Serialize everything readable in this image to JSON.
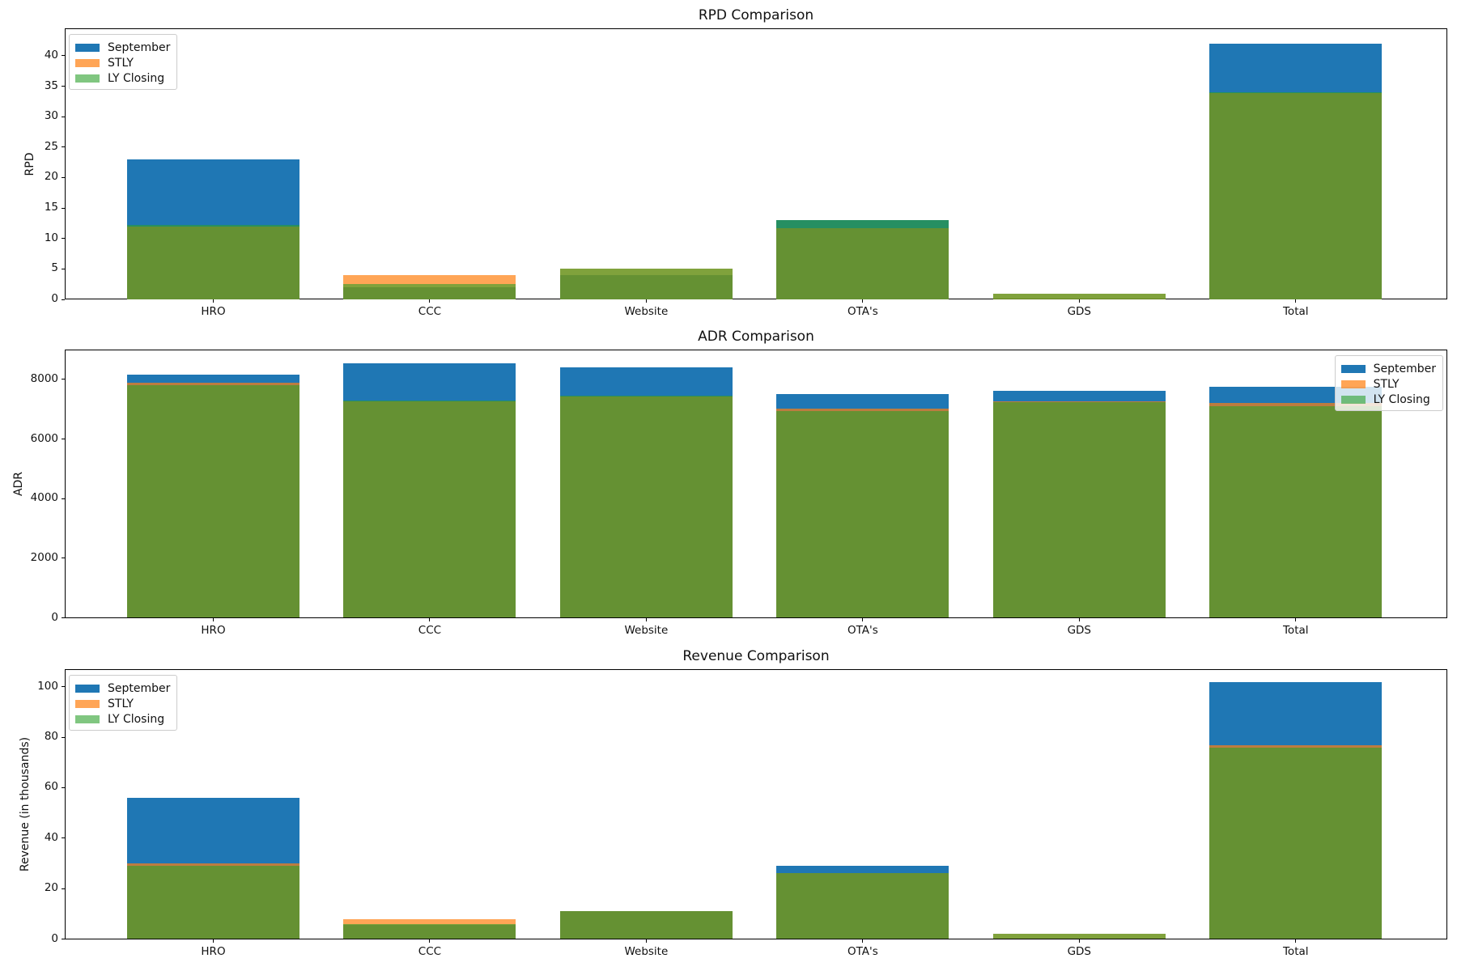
{
  "figure": {
    "background": "#ffffff"
  },
  "series_colors": {
    "September": "#1f77b4",
    "STLY": "#ff7f0e",
    "LY Closing": "#2ca02c"
  },
  "series_opacity": {
    "September": 1.0,
    "STLY": 0.7,
    "LY Closing": 0.6
  },
  "chart_data": [
    {
      "type": "bar",
      "title": "RPD Comparison",
      "ylabel": "RPD",
      "categories": [
        "HRO",
        "CCC",
        "Website",
        "OTA's",
        "GDS",
        "Total"
      ],
      "series": [
        {
          "name": "September",
          "values": [
            23,
            2,
            4,
            13,
            0,
            42
          ]
        },
        {
          "name": "STLY",
          "values": [
            12,
            4,
            5,
            11.7,
            0.9,
            33.9
          ]
        },
        {
          "name": "LY Closing",
          "values": [
            12.2,
            2.5,
            5,
            13,
            0.9,
            34
          ]
        }
      ],
      "ylim": [
        0,
        44.5
      ],
      "yticks": [
        0,
        5,
        10,
        15,
        20,
        25,
        30,
        35,
        40
      ],
      "legend_loc": "upper left",
      "grid": false
    },
    {
      "type": "bar",
      "title": "ADR Comparison",
      "ylabel": "ADR",
      "categories": [
        "HRO",
        "CCC",
        "Website",
        "OTA's",
        "GDS",
        "Total"
      ],
      "series": [
        {
          "name": "September",
          "values": [
            8150,
            8550,
            8390,
            7510,
            7620,
            7740
          ]
        },
        {
          "name": "STLY",
          "values": [
            7890,
            7250,
            7420,
            7020,
            7260,
            7200
          ]
        },
        {
          "name": "LY Closing",
          "values": [
            7810,
            7290,
            7440,
            6940,
            7240,
            7110
          ]
        }
      ],
      "ylim": [
        0,
        9000
      ],
      "yticks": [
        0,
        2000,
        4000,
        6000,
        8000
      ],
      "legend_loc": "upper right",
      "grid": false
    },
    {
      "type": "bar",
      "title": "Revenue Comparison",
      "ylabel": "Revenue (in thousands)",
      "categories": [
        "HRO",
        "CCC",
        "Website",
        "OTA's",
        "GDS",
        "Total"
      ],
      "series": [
        {
          "name": "September",
          "values": [
            56,
            5.5,
            11,
            29,
            0,
            102
          ]
        },
        {
          "name": "STLY",
          "values": [
            30,
            8,
            11,
            26,
            2.2,
            77
          ]
        },
        {
          "name": "LY Closing",
          "values": [
            29,
            6,
            11,
            26,
            2.2,
            76
          ]
        }
      ],
      "ylim": [
        0,
        107
      ],
      "yticks": [
        0,
        20,
        40,
        60,
        80,
        100
      ],
      "legend_loc": "upper left",
      "grid": false
    }
  ]
}
